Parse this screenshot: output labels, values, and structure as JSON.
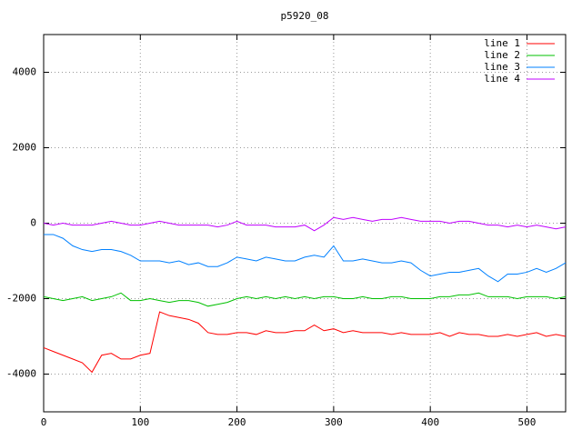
{
  "chart_data": {
    "type": "line",
    "title": "p5920_08",
    "x": [
      0,
      10,
      20,
      30,
      40,
      50,
      60,
      70,
      80,
      90,
      100,
      110,
      120,
      130,
      140,
      150,
      160,
      170,
      180,
      190,
      200,
      210,
      220,
      230,
      240,
      250,
      260,
      270,
      280,
      290,
      300,
      310,
      320,
      330,
      340,
      350,
      360,
      370,
      380,
      390,
      400,
      410,
      420,
      430,
      440,
      450,
      460,
      470,
      480,
      490,
      500,
      510,
      520,
      530,
      540
    ],
    "series": [
      {
        "name": "line 1",
        "color": "#ff0000",
        "values": [
          -3300,
          -3400,
          -3500,
          -3600,
          -3700,
          -3950,
          -3500,
          -3450,
          -3600,
          -3600,
          -3500,
          -3450,
          -2350,
          -2450,
          -2500,
          -2550,
          -2650,
          -2900,
          -2950,
          -2950,
          -2900,
          -2900,
          -2950,
          -2850,
          -2900,
          -2900,
          -2850,
          -2850,
          -2700,
          -2850,
          -2800,
          -2900,
          -2850,
          -2900,
          -2900,
          -2900,
          -2950,
          -2900,
          -2950,
          -2950,
          -2950,
          -2900,
          -3000,
          -2900,
          -2950,
          -2950,
          -3000,
          -3000,
          -2950,
          -3000,
          -2950,
          -2900,
          -3000,
          -2950,
          -3000
        ]
      },
      {
        "name": "line 2",
        "color": "#00c000",
        "values": [
          -1950,
          -2000,
          -2050,
          -2000,
          -1950,
          -2050,
          -2000,
          -1950,
          -1850,
          -2050,
          -2050,
          -2000,
          -2050,
          -2100,
          -2050,
          -2050,
          -2100,
          -2200,
          -2150,
          -2100,
          -2000,
          -1950,
          -2000,
          -1950,
          -2000,
          -1950,
          -2000,
          -1950,
          -2000,
          -1950,
          -1950,
          -2000,
          -2000,
          -1950,
          -2000,
          -2000,
          -1950,
          -1950,
          -2000,
          -2000,
          -2000,
          -1950,
          -1950,
          -1900,
          -1900,
          -1850,
          -1950,
          -1950,
          -1950,
          -2000,
          -1950,
          -1950,
          -1950,
          -2000,
          -1950
        ]
      },
      {
        "name": "line 3",
        "color": "#0080ff",
        "values": [
          -300,
          -300,
          -400,
          -600,
          -700,
          -750,
          -700,
          -700,
          -750,
          -850,
          -1000,
          -1000,
          -1000,
          -1050,
          -1000,
          -1100,
          -1050,
          -1150,
          -1150,
          -1050,
          -900,
          -950,
          -1000,
          -900,
          -950,
          -1000,
          -1000,
          -900,
          -850,
          -900,
          -600,
          -1000,
          -1000,
          -950,
          -1000,
          -1050,
          -1050,
          -1000,
          -1050,
          -1250,
          -1400,
          -1350,
          -1300,
          -1300,
          -1250,
          -1200,
          -1400,
          -1550,
          -1350,
          -1350,
          -1300,
          -1200,
          -1300,
          -1200,
          -1050
        ]
      },
      {
        "name": "line 4",
        "color": "#c000ff",
        "values": [
          0,
          -50,
          0,
          -50,
          -50,
          -50,
          0,
          50,
          0,
          -50,
          -50,
          0,
          50,
          0,
          -50,
          -50,
          -50,
          -50,
          -100,
          -50,
          50,
          -50,
          -50,
          -50,
          -100,
          -100,
          -100,
          -50,
          -200,
          -50,
          150,
          100,
          150,
          100,
          50,
          100,
          100,
          150,
          100,
          50,
          50,
          50,
          0,
          50,
          50,
          0,
          -50,
          -50,
          -100,
          -50,
          -100,
          -50,
          -100,
          -150,
          -100
        ]
      }
    ],
    "xlim": [
      0,
      540
    ],
    "xticks": [
      0,
      100,
      200,
      300,
      400,
      500
    ],
    "ylim": [
      -5000,
      5000
    ],
    "yticks": [
      -4000,
      -2000,
      0,
      2000,
      4000
    ],
    "grid": true,
    "legend": "top-right"
  }
}
